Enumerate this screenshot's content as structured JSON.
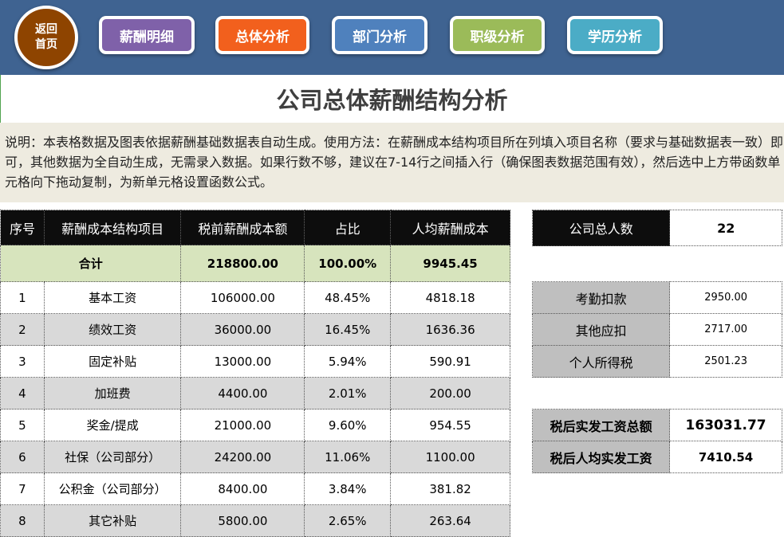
{
  "nav": {
    "home_line1": "返回",
    "home_line2": "首页",
    "buttons": [
      {
        "label": "薪酬明细",
        "color": "#7f61a9"
      },
      {
        "label": "总体分析",
        "color": "#f2601d"
      },
      {
        "label": "部门分析",
        "color": "#4f81bd"
      },
      {
        "label": "职级分析",
        "color": "#9bbb59"
      },
      {
        "label": "学历分析",
        "color": "#4bacc6"
      }
    ]
  },
  "title": "公司总体薪酬结构分析",
  "description": "说明：本表格数据及图表依据薪酬基础数据表自动生成。使用方法：在薪酬成本结构项目所在列填入项目名称（要求与基础数据表一致）即可，其他数据为全自动生成，无需录入数据。如果行数不够，建议在7-14行之间插入行（确保图表数据范围有效），然后选中上方带函数单元格向下拖动复制，为新单元格设置函数公式。",
  "table": {
    "headers": [
      "序号",
      "薪酬成本结构项目",
      "税前薪酬成本额",
      "占比",
      "人均薪酬成本"
    ],
    "total": {
      "label": "合计",
      "amount": "218800.00",
      "ratio": "100.00%",
      "per_capita": "9945.45"
    },
    "rows": [
      {
        "no": "1",
        "item": "基本工资",
        "amount": "106000.00",
        "ratio": "48.45%",
        "per_capita": "4818.18"
      },
      {
        "no": "2",
        "item": "绩效工资",
        "amount": "36000.00",
        "ratio": "16.45%",
        "per_capita": "1636.36"
      },
      {
        "no": "3",
        "item": "固定补贴",
        "amount": "13000.00",
        "ratio": "5.94%",
        "per_capita": "590.91"
      },
      {
        "no": "4",
        "item": "加班费",
        "amount": "4400.00",
        "ratio": "2.01%",
        "per_capita": "200.00"
      },
      {
        "no": "5",
        "item": "奖金/提成",
        "amount": "21000.00",
        "ratio": "9.60%",
        "per_capita": "954.55"
      },
      {
        "no": "6",
        "item": "社保（公司部分）",
        "amount": "24200.00",
        "ratio": "11.06%",
        "per_capita": "1100.00"
      },
      {
        "no": "7",
        "item": "公积金（公司部分）",
        "amount": "8400.00",
        "ratio": "3.84%",
        "per_capita": "381.82"
      },
      {
        "no": "8",
        "item": "其它补贴",
        "amount": "5800.00",
        "ratio": "2.65%",
        "per_capita": "263.64"
      }
    ]
  },
  "headcount": {
    "label": "公司总人数",
    "value": "22"
  },
  "deductions": [
    {
      "label": "考勤扣款",
      "value": "2950.00"
    },
    {
      "label": "其他应扣",
      "value": "2717.00"
    },
    {
      "label": "个人所得税",
      "value": "2501.23"
    }
  ],
  "net_pay": [
    {
      "label": "税后实发工资总额",
      "value": "163031.77"
    },
    {
      "label": "税后人均实发工资",
      "value": "7410.54"
    }
  ]
}
